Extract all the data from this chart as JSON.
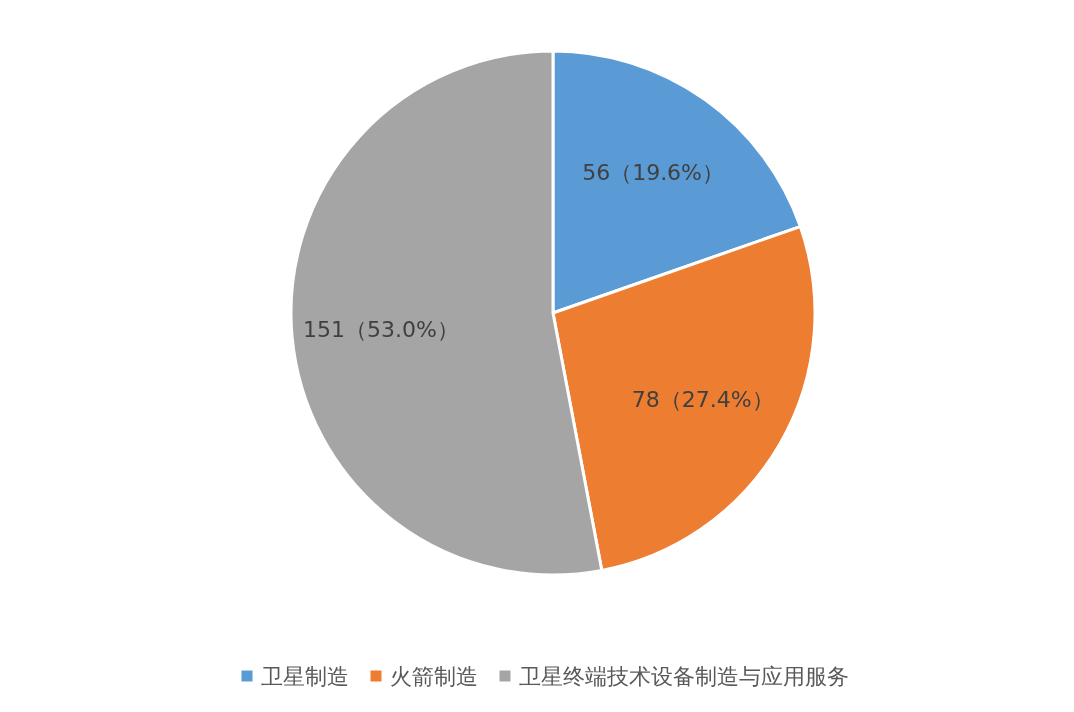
{
  "chart_data": {
    "type": "pie",
    "categories": [
      "卫星制造",
      "火箭制造",
      "卫星终端技术设备制造与应用服务"
    ],
    "values": [
      56,
      78,
      151
    ],
    "colors": [
      "#5b9bd5",
      "#ed7d31",
      "#a5a5a5"
    ],
    "value_labels": [
      "56（19.6%）",
      "78（27.4%）",
      "151（53.0%）"
    ],
    "legend": "bottom"
  }
}
